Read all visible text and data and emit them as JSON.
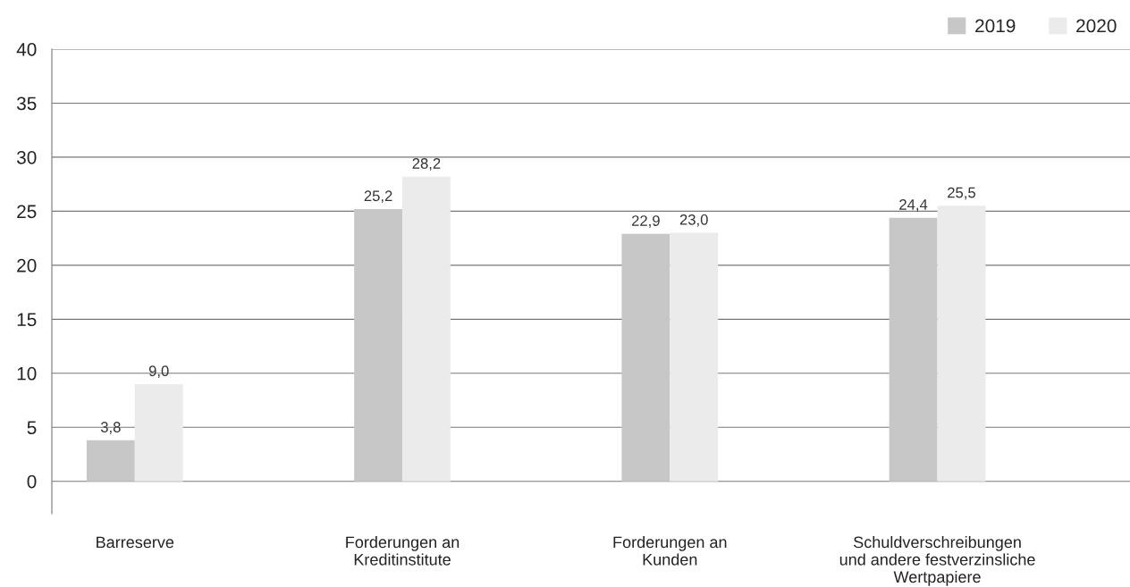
{
  "chart_data": {
    "type": "bar",
    "categories": [
      "Barreserve",
      "Forderungen an\nKreditinstitute",
      "Forderungen an\nKunden",
      "Schuldverschreibungen\nund andere festverzinsliche\nWertpapiere"
    ],
    "series": [
      {
        "name": "2019",
        "color": "#c6c7c6",
        "values": [
          3.8,
          25.2,
          22.9,
          24.4
        ],
        "value_labels": [
          "3,8",
          "25,2",
          "22,9",
          "24,4"
        ]
      },
      {
        "name": "2020",
        "color": "#ebebeb",
        "values": [
          9.0,
          28.2,
          23.0,
          25.5
        ],
        "value_labels": [
          "9,0",
          "28,2",
          "23,0",
          "25,5"
        ]
      }
    ],
    "ylim": [
      -3,
      40
    ],
    "yticks": [
      0,
      5,
      10,
      15,
      20,
      25,
      30,
      35,
      40
    ],
    "grid": "y",
    "legend": "top right"
  }
}
